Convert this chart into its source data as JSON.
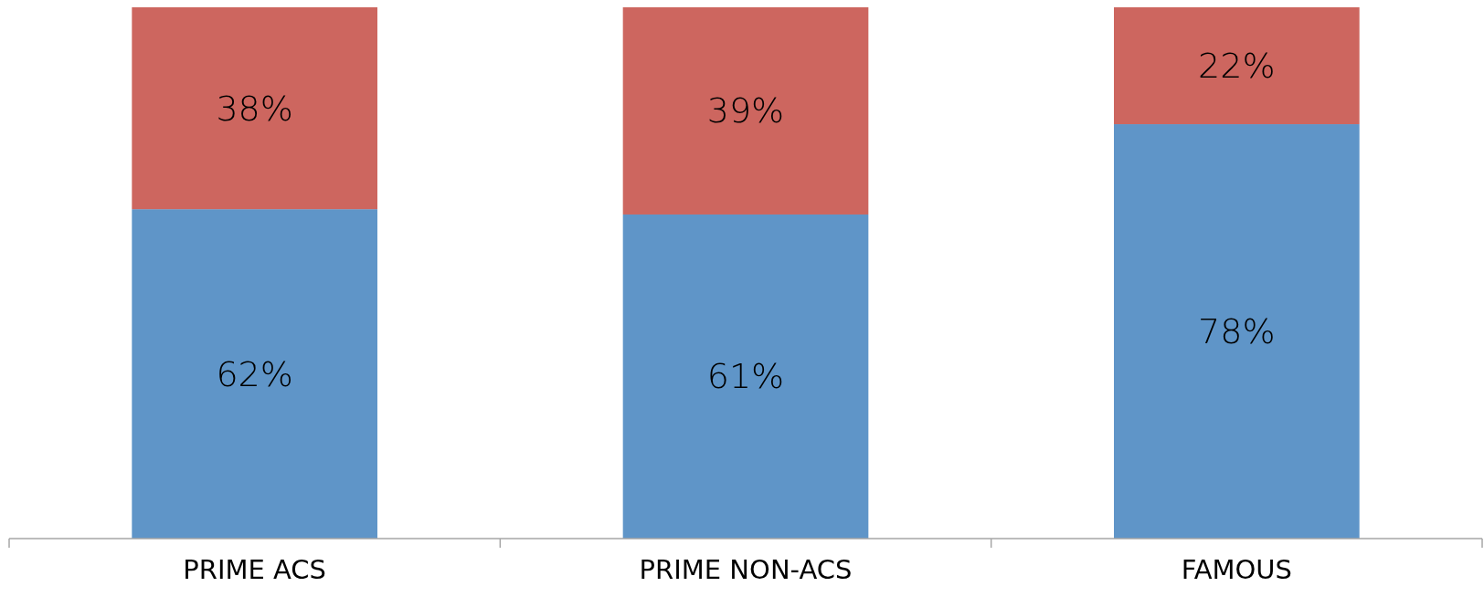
{
  "chart_data": {
    "type": "bar",
    "stacked": true,
    "categories": [
      "PRIME ACS",
      "PRIME NON-ACS",
      "FAMOUS"
    ],
    "series": [
      {
        "color": "#5f95c8",
        "values": [
          62,
          61,
          78
        ],
        "value_labels": [
          "62%",
          "61%",
          "78%"
        ]
      },
      {
        "color": "#cd665f",
        "values": [
          38,
          39,
          22
        ],
        "value_labels": [
          "38%",
          "39%",
          "22%"
        ]
      }
    ]
  }
}
